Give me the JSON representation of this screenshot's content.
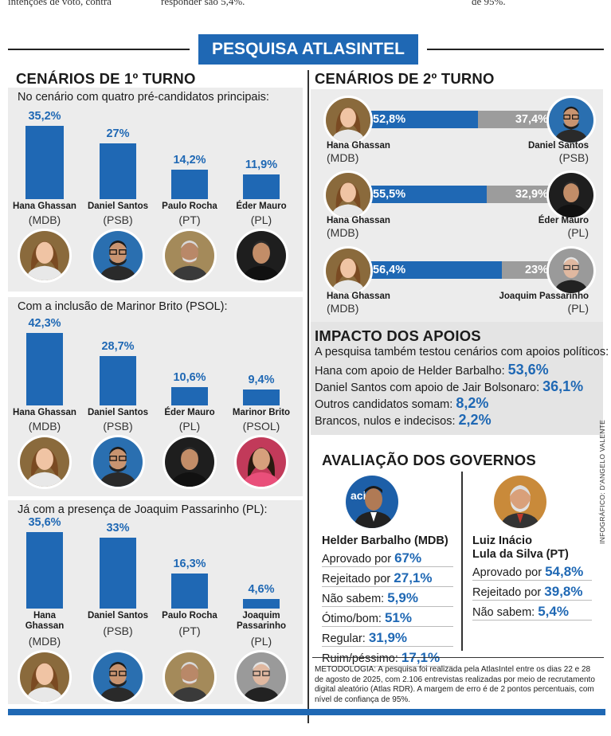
{
  "top_fragments": {
    "left": "intenções de voto, contra",
    "middle": "responder são 5,4%.",
    "right": "de 95%."
  },
  "banner": "PESQUISA ATLASINTEL",
  "colors": {
    "accent": "#1f68b4",
    "gray_bar": "#9c9c9c",
    "panel": "#ececec"
  },
  "first_round": {
    "title": "CENÁRIOS DE 1º TURNO",
    "scenarios": [
      {
        "intro": "No cenário com quatro pré-candidatos principais:",
        "candidates": [
          {
            "name": "Hana Ghassan",
            "party": "(MDB)",
            "value": 35.2,
            "label": "35,2%",
            "photo": "hana-photo"
          },
          {
            "name": "Daniel Santos",
            "party": "(PSB)",
            "value": 27.0,
            "label": "27%",
            "photo": "daniel-photo"
          },
          {
            "name": "Paulo Rocha",
            "party": "(PT)",
            "value": 14.2,
            "label": "14,2%",
            "photo": "paulo-photo"
          },
          {
            "name": "Éder Mauro",
            "party": "(PL)",
            "value": 11.9,
            "label": "11,9%",
            "photo": "eder-photo"
          }
        ]
      },
      {
        "intro": "Com a inclusão de Marinor Brito (PSOL):",
        "candidates": [
          {
            "name": "Hana Ghassan",
            "party": "(MDB)",
            "value": 42.3,
            "label": "42,3%",
            "photo": "hana-photo"
          },
          {
            "name": "Daniel Santos",
            "party": "(PSB)",
            "value": 28.7,
            "label": "28,7%",
            "photo": "daniel-photo"
          },
          {
            "name": "Éder Mauro",
            "party": "(PL)",
            "value": 10.6,
            "label": "10,6%",
            "photo": "eder-photo"
          },
          {
            "name": "Marinor Brito",
            "party": "(PSOL)",
            "value": 9.4,
            "label": "9,4%",
            "photo": "marinor-photo"
          }
        ]
      },
      {
        "intro": "Já com a presença de Joaquim Passarinho (PL):",
        "candidates": [
          {
            "name": "Hana Ghassan",
            "party": "(MDB)",
            "value": 35.6,
            "label": "35,6%",
            "photo": "hana-photo"
          },
          {
            "name": "Daniel Santos",
            "party": "(PSB)",
            "value": 33.0,
            "label": "33%",
            "photo": "daniel-photo"
          },
          {
            "name": "Paulo Rocha",
            "party": "(PT)",
            "value": 16.3,
            "label": "16,3%",
            "photo": "paulo-photo"
          },
          {
            "name": "Joaquim Passarinho",
            "party": "(PL)",
            "value": 4.6,
            "label": "4,6%",
            "photo": "joaquim-photo"
          }
        ]
      }
    ]
  },
  "second_round": {
    "title": "CENÁRIOS DE 2º TURNO",
    "matchups": [
      {
        "left": {
          "name": "Hana Ghassan",
          "party": "(MDB)",
          "value": 52.8,
          "label": "52,8%"
        },
        "right": {
          "name": "Daniel Santos",
          "party": "(PSB)",
          "value": 37.4,
          "label": "37,4%"
        }
      },
      {
        "left": {
          "name": "Hana Ghassan",
          "party": "(MDB)",
          "value": 55.5,
          "label": "55,5%"
        },
        "right": {
          "name": "Éder Mauro",
          "party": "(PL)",
          "value": 32.9,
          "label": "32,9%"
        }
      },
      {
        "left": {
          "name": "Hana Ghassan",
          "party": "(MDB)",
          "value": 56.4,
          "label": "56,4%"
        },
        "right": {
          "name": "Joaquim Passarinho",
          "party": "(PL)",
          "value": 23.0,
          "label": "23%"
        }
      }
    ]
  },
  "impact": {
    "title": "IMPACTO DOS APOIOS",
    "intro": "A pesquisa também testou cenários com apoios políticos:",
    "lines": [
      {
        "text": "Hana com apoio de Helder Barbalho: ",
        "value": "53,6%"
      },
      {
        "text": "Daniel Santos com apoio de Jair Bolsonaro: ",
        "value": "36,1%"
      },
      {
        "text": "Outros candidatos somam: ",
        "value": "8,2%"
      },
      {
        "text": "Brancos, nulos e indecisos: ",
        "value": "2,2%"
      }
    ]
  },
  "governments": {
    "title": "AVALIAÇÃO DOS GOVERNOS",
    "left": {
      "name": "Helder Barbalho (MDB)",
      "lines": [
        {
          "text": "Aprovado por ",
          "value": "67%"
        },
        {
          "text": "Rejeitado por ",
          "value": "27,1%"
        },
        {
          "text": "Não sabem: ",
          "value": "5,9%"
        },
        {
          "text": "Ótimo/bom: ",
          "value": "51%"
        },
        {
          "text": "Regular: ",
          "value": "31,9%"
        },
        {
          "text": "Ruim/péssimo: ",
          "value": "17,1%"
        }
      ]
    },
    "right": {
      "name_line1": "Luiz Inácio",
      "name_line2": "Lula da Silva (PT)",
      "lines": [
        {
          "text": "Aprovado por ",
          "value": "54,8%"
        },
        {
          "text": "Rejeitado por ",
          "value": "39,8%"
        },
        {
          "text": "Não sabem: ",
          "value": "5,4%"
        }
      ]
    }
  },
  "credit": "INFOGRÁFICO: D'ANGELO VALENTE",
  "methodology": "METODOLOGIA: A pesquisa foi realizada pela AtlasIntel entre os dias 22 e 28 de agosto de 2025, com 2.106 entrevistas realizadas por meio de recrutamento digital aleatório (Atlas RDR). A margem de erro é de 2 pontos percentuais, com nível de confiança de 95%.",
  "chart_data": [
    {
      "type": "bar",
      "title": "No cenário com quatro pré-candidatos principais:",
      "categories": [
        "Hana Ghassan",
        "Daniel Santos",
        "Paulo Rocha",
        "Éder Mauro"
      ],
      "values": [
        35.2,
        27.0,
        14.2,
        11.9
      ]
    },
    {
      "type": "bar",
      "title": "Com a inclusão de Marinor Brito (PSOL):",
      "categories": [
        "Hana Ghassan",
        "Daniel Santos",
        "Éder Mauro",
        "Marinor Brito"
      ],
      "values": [
        42.3,
        28.7,
        10.6,
        9.4
      ]
    },
    {
      "type": "bar",
      "title": "Já com a presença de Joaquim Passarinho (PL):",
      "categories": [
        "Hana Ghassan",
        "Daniel Santos",
        "Paulo Rocha",
        "Joaquim Passarinho"
      ],
      "values": [
        35.6,
        33.0,
        16.3,
        4.6
      ]
    },
    {
      "type": "bar",
      "title": "CENÁRIOS DE 2º TURNO",
      "categories": [
        "Hana Ghassan x Daniel Santos",
        "Hana Ghassan x Éder Mauro",
        "Hana Ghassan x Joaquim Passarinho"
      ],
      "series": [
        {
          "values": [
            52.8,
            55.5,
            56.4
          ]
        },
        {
          "values": [
            37.4,
            32.9,
            23.0
          ]
        }
      ]
    }
  ]
}
